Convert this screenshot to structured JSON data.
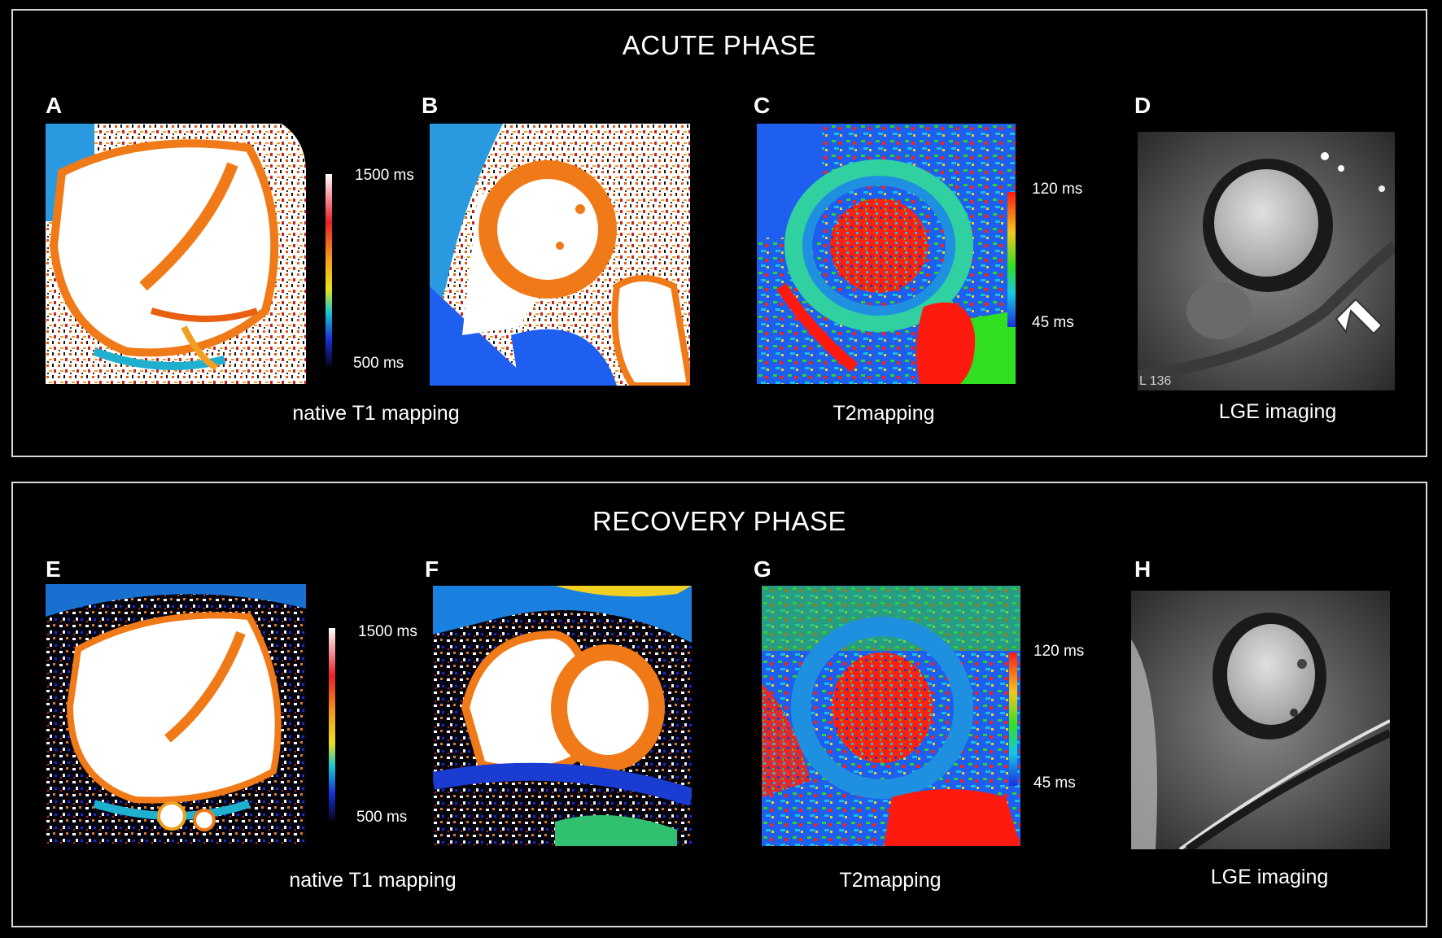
{
  "acute": {
    "title": "ACUTE PHASE",
    "panels": [
      {
        "letter": "A"
      },
      {
        "letter": "B"
      },
      {
        "letter": "C"
      },
      {
        "letter": "D"
      }
    ],
    "captions": {
      "t1": "native T1 mapping",
      "t2": "T2mapping",
      "lge": "LGE imaging"
    },
    "t1_scale": {
      "max": "1500 ms",
      "min": "500 ms"
    },
    "t2_scale": {
      "max": "120 ms",
      "min": "45 ms"
    },
    "lge_overlay": "L 136"
  },
  "recovery": {
    "title": "RECOVERY PHASE",
    "panels": [
      {
        "letter": "E"
      },
      {
        "letter": "F"
      },
      {
        "letter": "G"
      },
      {
        "letter": "H"
      }
    ],
    "captions": {
      "t1": "native T1 mapping",
      "t2": "T2mapping",
      "lge": "LGE imaging"
    },
    "t1_scale": {
      "max": "1500 ms",
      "min": "500 ms"
    },
    "t2_scale": {
      "max": "120 ms",
      "min": "45 ms"
    }
  },
  "colors": {
    "background": "#000000",
    "frame": "#d8d8d8",
    "myocardium_t1": "#f07a18",
    "blood_pool": "#ffffff",
    "t2_background": "#1f5ff0",
    "t2_hot": "#ff1a10"
  }
}
